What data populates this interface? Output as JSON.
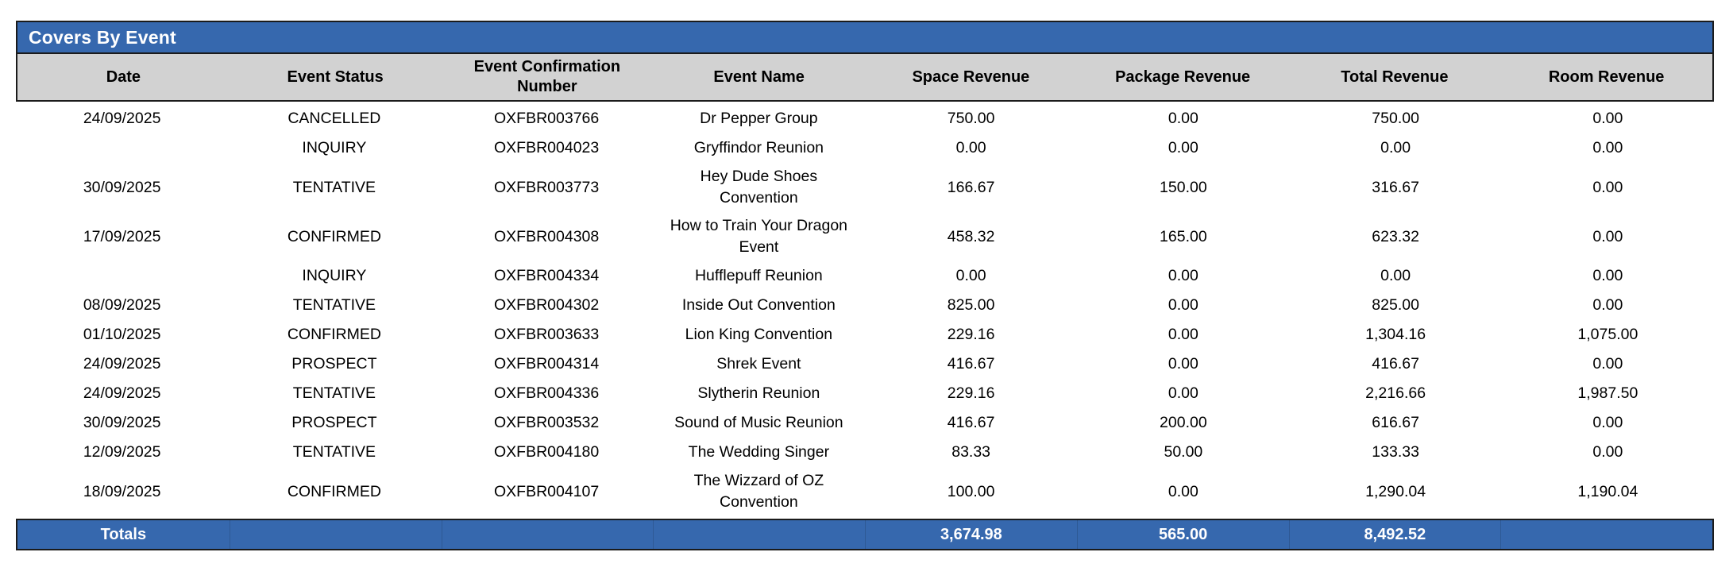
{
  "report": {
    "title": "Covers By Event"
  },
  "colors": {
    "accent_blue": "#3668AE",
    "header_gray": "#D2D2D2",
    "border_dark": "#1B1B1B",
    "body_text": "#000000",
    "totals_text": "#FFFFFF"
  },
  "table": {
    "columns": [
      "Date",
      "Event Status",
      "Event Confirmation Number",
      "Event Name",
      "Space Revenue",
      "Package Revenue",
      "Total Revenue",
      "Room Revenue"
    ],
    "rows": [
      {
        "date": "24/09/2025",
        "status": "CANCELLED",
        "confirmation": "OXFBR003766",
        "name": "Dr Pepper Group",
        "space": "750.00",
        "package": "0.00",
        "total": "750.00",
        "room": "0.00"
      },
      {
        "date": "",
        "status": "INQUIRY",
        "confirmation": "OXFBR004023",
        "name": "Gryffindor Reunion",
        "space": "0.00",
        "package": "0.00",
        "total": "0.00",
        "room": "0.00"
      },
      {
        "date": "30/09/2025",
        "status": "TENTATIVE",
        "confirmation": "OXFBR003773",
        "name": "Hey Dude Shoes Convention",
        "space": "166.67",
        "package": "150.00",
        "total": "316.67",
        "room": "0.00"
      },
      {
        "date": "17/09/2025",
        "status": "CONFIRMED",
        "confirmation": "OXFBR004308",
        "name": "How to Train Your Dragon Event",
        "space": "458.32",
        "package": "165.00",
        "total": "623.32",
        "room": "0.00"
      },
      {
        "date": "",
        "status": "INQUIRY",
        "confirmation": "OXFBR004334",
        "name": "Hufflepuff Reunion",
        "space": "0.00",
        "package": "0.00",
        "total": "0.00",
        "room": "0.00"
      },
      {
        "date": "08/09/2025",
        "status": "TENTATIVE",
        "confirmation": "OXFBR004302",
        "name": "Inside Out Convention",
        "space": "825.00",
        "package": "0.00",
        "total": "825.00",
        "room": "0.00"
      },
      {
        "date": "01/10/2025",
        "status": "CONFIRMED",
        "confirmation": "OXFBR003633",
        "name": "Lion King Convention",
        "space": "229.16",
        "package": "0.00",
        "total": "1,304.16",
        "room": "1,075.00"
      },
      {
        "date": "24/09/2025",
        "status": "PROSPECT",
        "confirmation": "OXFBR004314",
        "name": "Shrek Event",
        "space": "416.67",
        "package": "0.00",
        "total": "416.67",
        "room": "0.00"
      },
      {
        "date": "24/09/2025",
        "status": "TENTATIVE",
        "confirmation": "OXFBR004336",
        "name": "Slytherin Reunion",
        "space": "229.16",
        "package": "0.00",
        "total": "2,216.66",
        "room": "1,987.50"
      },
      {
        "date": "30/09/2025",
        "status": "PROSPECT",
        "confirmation": "OXFBR003532",
        "name": "Sound of Music Reunion",
        "space": "416.67",
        "package": "200.00",
        "total": "616.67",
        "room": "0.00"
      },
      {
        "date": "12/09/2025",
        "status": "TENTATIVE",
        "confirmation": "OXFBR004180",
        "name": "The Wedding Singer",
        "space": "83.33",
        "package": "50.00",
        "total": "133.33",
        "room": "0.00"
      },
      {
        "date": "18/09/2025",
        "status": "CONFIRMED",
        "confirmation": "OXFBR004107",
        "name": "The Wizzard of OZ Convention",
        "space": "100.00",
        "package": "0.00",
        "total": "1,290.04",
        "room": "1,190.04"
      }
    ],
    "totals": {
      "label": "Totals",
      "space": "3,674.98",
      "package": "565.00",
      "total": "8,492.52",
      "room": ""
    }
  }
}
